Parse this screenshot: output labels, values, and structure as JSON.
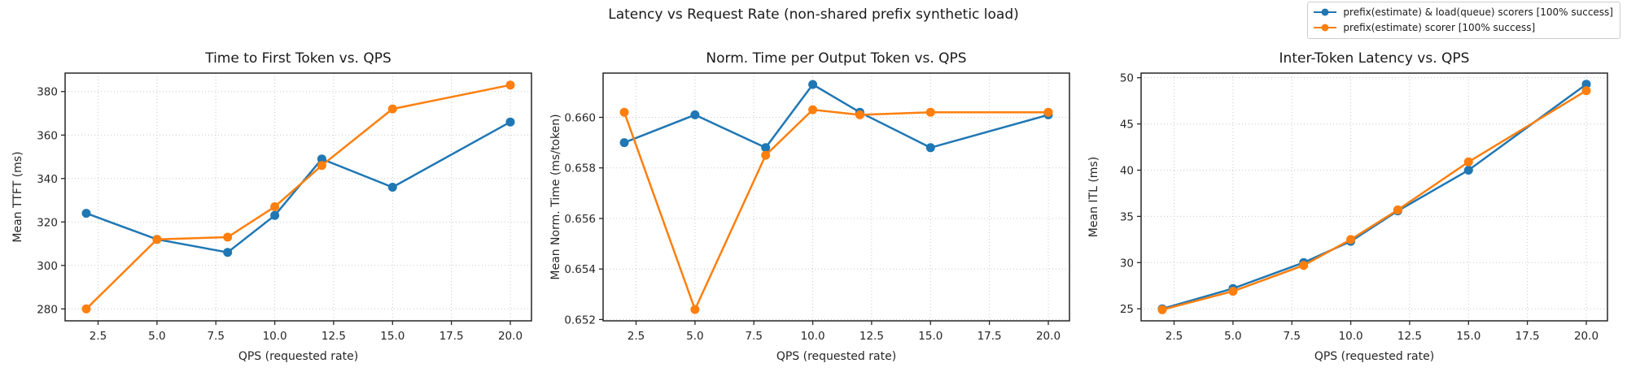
{
  "figure": {
    "title": "Latency vs Request Rate (non-shared prefix synthetic load)"
  },
  "legend": {
    "position": "top-right",
    "items": [
      {
        "label": "prefix(estimate) & load(queue) scorers [100% success]",
        "color": "#1f77b4"
      },
      {
        "label": "prefix(estimate) scorer [100% success]",
        "color": "#ff7f0e"
      }
    ]
  },
  "colors": {
    "series_blue": "#1f77b4",
    "series_orange": "#ff7f0e",
    "grid": "#c9c9c9",
    "spine": "#262626"
  },
  "chart_data": [
    {
      "type": "line",
      "title": "Time to First Token vs. QPS",
      "xlabel": "QPS (requested rate)",
      "ylabel": "Mean TTFT (ms)",
      "x": [
        2,
        5,
        8,
        10,
        12,
        15,
        20
      ],
      "series": [
        {
          "name": "prefix(estimate) & load(queue) scorers [100% success]",
          "color": "#1f77b4",
          "values": [
            324,
            312,
            306,
            323,
            349,
            336,
            366
          ]
        },
        {
          "name": "prefix(estimate) scorer [100% success]",
          "color": "#ff7f0e",
          "values": [
            280,
            312,
            313,
            327,
            346,
            372,
            383
          ]
        }
      ],
      "xlim": [
        1.1,
        20.9
      ],
      "ylim": [
        274.5,
        388.5
      ],
      "xticks": [
        2.5,
        5,
        7.5,
        10,
        12.5,
        15,
        17.5,
        20
      ],
      "xtick_labels": [
        "2.5",
        "5.0",
        "7.5",
        "10.0",
        "12.5",
        "15.0",
        "17.5",
        "20.0"
      ],
      "yticks": [
        280,
        300,
        320,
        340,
        360,
        380
      ],
      "ytick_labels": [
        "280",
        "300",
        "320",
        "340",
        "360",
        "380"
      ],
      "grid": true,
      "legend_position": "figure-top-right"
    },
    {
      "type": "line",
      "title": "Norm. Time per Output Token vs. QPS",
      "xlabel": "QPS (requested rate)",
      "ylabel": "Mean Norm. Time (ms/token)",
      "x": [
        2,
        5,
        8,
        10,
        12,
        15,
        20
      ],
      "series": [
        {
          "name": "prefix(estimate) & load(queue) scorers [100% success]",
          "color": "#1f77b4",
          "values": [
            0.659,
            0.6601,
            0.6588,
            0.6613,
            0.6602,
            0.6588,
            0.6601
          ]
        },
        {
          "name": "prefix(estimate) scorer [100% success]",
          "color": "#ff7f0e",
          "values": [
            0.6602,
            0.6524,
            0.6585,
            0.6603,
            0.6601,
            0.6602,
            0.6602
          ]
        }
      ],
      "xlim": [
        1.1,
        20.9
      ],
      "ylim": [
        0.65195,
        0.66175
      ],
      "xticks": [
        2.5,
        5,
        7.5,
        10,
        12.5,
        15,
        17.5,
        20
      ],
      "xtick_labels": [
        "2.5",
        "5.0",
        "7.5",
        "10.0",
        "12.5",
        "15.0",
        "17.5",
        "20.0"
      ],
      "yticks": [
        0.652,
        0.654,
        0.656,
        0.658,
        0.66
      ],
      "ytick_labels": [
        "0.652",
        "0.654",
        "0.656",
        "0.658",
        "0.660"
      ],
      "grid": true,
      "legend_position": "figure-top-right"
    },
    {
      "type": "line",
      "title": "Inter-Token Latency vs. QPS",
      "xlabel": "QPS (requested rate)",
      "ylabel": "Mean ITL (ms)",
      "x": [
        2,
        5,
        8,
        10,
        12,
        15,
        20
      ],
      "series": [
        {
          "name": "prefix(estimate) & load(queue) scorers [100% success]",
          "color": "#1f77b4",
          "values": [
            25.0,
            27.2,
            30.0,
            32.3,
            35.6,
            40.0,
            49.3
          ]
        },
        {
          "name": "prefix(estimate) scorer [100% success]",
          "color": "#ff7f0e",
          "values": [
            24.9,
            26.9,
            29.7,
            32.5,
            35.7,
            40.9,
            48.6
          ]
        }
      ],
      "xlim": [
        1.1,
        20.9
      ],
      "ylim": [
        23.7,
        50.5
      ],
      "xticks": [
        2.5,
        5,
        7.5,
        10,
        12.5,
        15,
        17.5,
        20
      ],
      "xtick_labels": [
        "2.5",
        "5.0",
        "7.5",
        "10.0",
        "12.5",
        "15.0",
        "17.5",
        "20.0"
      ],
      "yticks": [
        25,
        30,
        35,
        40,
        45,
        50
      ],
      "ytick_labels": [
        "25",
        "30",
        "35",
        "40",
        "45",
        "50"
      ],
      "grid": true,
      "legend_position": "figure-top-right"
    }
  ]
}
